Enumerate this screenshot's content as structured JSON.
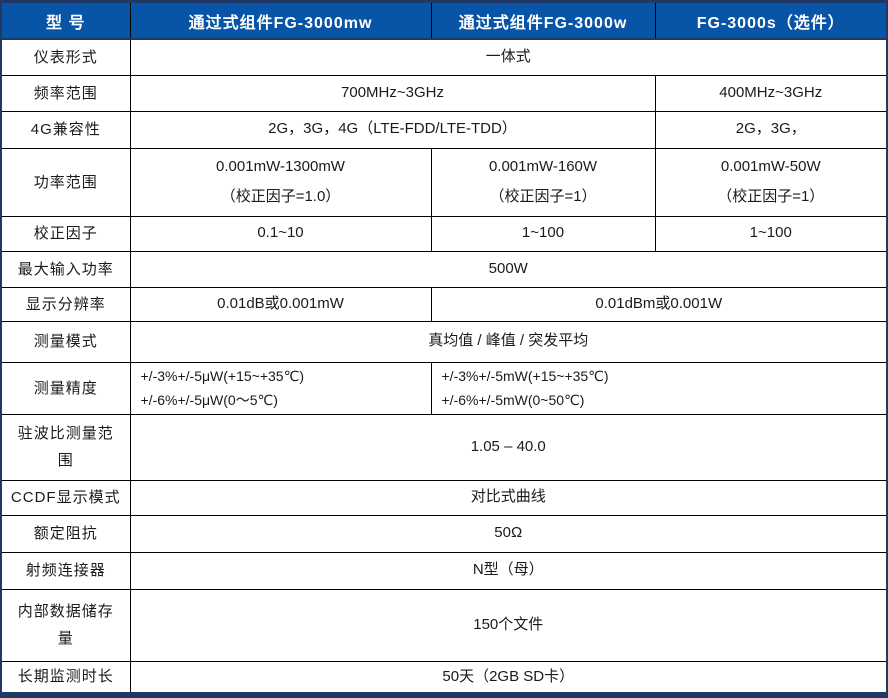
{
  "colors": {
    "header_bg": "#0854A6",
    "header_text": "#FFFFFF",
    "frame": "#1F3864",
    "grid": "#000000",
    "text": "#1A1A1A",
    "bg": "#FFFFFF"
  },
  "header": {
    "cells": [
      "型  号",
      "通过式组件FG-3000mw",
      "通过式组件FG-3000w",
      "FG-3000s（选件）"
    ]
  },
  "rows": [
    {
      "label": "仪表形式",
      "cells": [
        {
          "text": "一体式",
          "span": 3
        }
      ]
    },
    {
      "label": "频率范围",
      "cells": [
        {
          "text": "700MHz~3GHz",
          "span": 2
        },
        {
          "text": "400MHz~3GHz",
          "span": 1
        }
      ]
    },
    {
      "label": "4G兼容性",
      "cells": [
        {
          "text": "2G，3G，4G（LTE-FDD/LTE-TDD）",
          "span": 2
        },
        {
          "text": "2G，3G，",
          "span": 1
        }
      ]
    },
    {
      "label": "功率范围",
      "cells": [
        {
          "text": "0.001mW-1300mW\n（校正因子=1.0）",
          "span": 1
        },
        {
          "text": "0.001mW-160W\n（校正因子=1）",
          "span": 1
        },
        {
          "text": "0.001mW-50W\n（校正因子=1）",
          "span": 1
        }
      ]
    },
    {
      "label": "校正因子",
      "cells": [
        {
          "text": "0.1~10",
          "span": 1
        },
        {
          "text": "1~100",
          "span": 1
        },
        {
          "text": "1~100",
          "span": 1
        }
      ]
    },
    {
      "label": "最大输入功率",
      "cells": [
        {
          "text": "500W",
          "span": 3
        }
      ]
    },
    {
      "label": "显示分辨率",
      "cells": [
        {
          "text": "0.01dB或0.001mW",
          "span": 1
        },
        {
          "text": "0.01dBm或0.001W",
          "span": 2
        }
      ]
    },
    {
      "label": "测量模式",
      "cells": [
        {
          "text": "真均值 / 峰值 / 突发平均",
          "span": 3
        }
      ]
    },
    {
      "label": "测量精度",
      "cells": [
        {
          "text": "+/-3%+/-5μW(+15~+35℃)\n+/-6%+/-5μW(0～5℃)",
          "span": 1,
          "align": "left"
        },
        {
          "text": "+/-3%+/-5mW(+15~+35℃)\n+/-6%+/-5mW(0~50℃)",
          "span": 2,
          "align": "left"
        }
      ]
    },
    {
      "label": "驻波比测量范\n围",
      "cells": [
        {
          "text": "1.05 – 40.0",
          "span": 3
        }
      ]
    },
    {
      "label": "CCDF显示模式",
      "cells": [
        {
          "text": "对比式曲线",
          "span": 3
        }
      ]
    },
    {
      "label": "额定阻抗",
      "cells": [
        {
          "text": "50Ω",
          "span": 3
        }
      ]
    },
    {
      "label": "射频连接器",
      "cells": [
        {
          "text": "N型（母）",
          "span": 3
        }
      ]
    },
    {
      "label": "内部数据储存\n量",
      "cells": [
        {
          "text": "150个文件",
          "span": 3
        }
      ]
    },
    {
      "label": "长期监测时长",
      "cells": [
        {
          "text": "50天（2GB SD卡）",
          "span": 3
        }
      ]
    }
  ]
}
